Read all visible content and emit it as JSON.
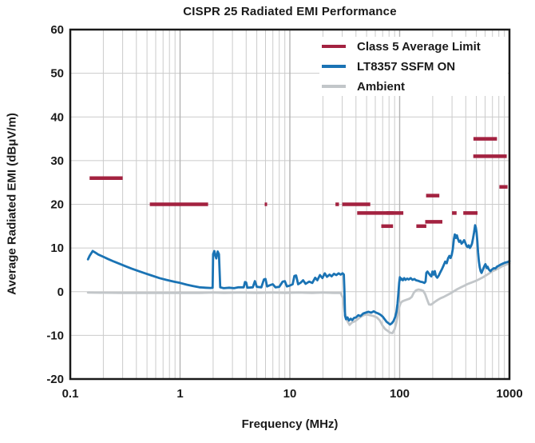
{
  "chart_data": {
    "type": "line",
    "title": "CISPR 25 Radiated EMI Performance",
    "xlabel": "Frequency (MHz)",
    "ylabel": "Average Radiated EMI (dBμV/m)",
    "x_scale": "log",
    "xlim": [
      0.1,
      1000
    ],
    "ylim": [
      -20,
      60
    ],
    "x_ticks": [
      0.1,
      1,
      10,
      100,
      1000
    ],
    "x_tick_labels": [
      "0.1",
      "1",
      "10",
      "100",
      "1000"
    ],
    "y_ticks": [
      60,
      50,
      40,
      30,
      20,
      10,
      0,
      -10,
      -20
    ],
    "grid": true,
    "legend_position": "top-right",
    "colors": {
      "grid": "#cbcbcb",
      "grid_major": "#b3b3b3",
      "frame": "#1a1a1a",
      "text": "#1a1a1a"
    },
    "series": [
      {
        "name": "Class 5 Average Limit",
        "type": "segments",
        "color": "#A32240",
        "units": "MHz, dBμV/m",
        "segments": [
          [
            0.15,
            0.3,
            26
          ],
          [
            0.53,
            1.8,
            20
          ],
          [
            5.9,
            6.2,
            20
          ],
          [
            26,
            28,
            20
          ],
          [
            30,
            54,
            20
          ],
          [
            41,
            88,
            18
          ],
          [
            76,
            108,
            18
          ],
          [
            68,
            87,
            15
          ],
          [
            142,
            175,
            15
          ],
          [
            171,
            245,
            16
          ],
          [
            174,
            230,
            22
          ],
          [
            300,
            330,
            18
          ],
          [
            380,
            512,
            18
          ],
          [
            470,
            770,
            35
          ],
          [
            468,
            944,
            31
          ],
          [
            810,
            960,
            24
          ]
        ]
      },
      {
        "name": "LT8357 SSFM ON",
        "type": "line",
        "color": "#1A73B4",
        "points": [
          [
            0.145,
            7.4
          ],
          [
            0.15,
            8.2
          ],
          [
            0.16,
            9.3
          ],
          [
            0.17,
            8.9
          ],
          [
            0.18,
            8.5
          ],
          [
            0.2,
            8.0
          ],
          [
            0.22,
            7.5
          ],
          [
            0.25,
            6.9
          ],
          [
            0.28,
            6.4
          ],
          [
            0.32,
            5.8
          ],
          [
            0.36,
            5.3
          ],
          [
            0.42,
            4.7
          ],
          [
            0.48,
            4.2
          ],
          [
            0.55,
            3.7
          ],
          [
            0.65,
            3.1
          ],
          [
            0.75,
            2.7
          ],
          [
            0.88,
            2.3
          ],
          [
            1.0,
            2.0
          ],
          [
            1.15,
            1.6
          ],
          [
            1.3,
            1.3
          ],
          [
            1.5,
            1.0
          ],
          [
            1.7,
            0.9
          ],
          [
            1.9,
            0.85
          ],
          [
            1.98,
            0.9
          ],
          [
            2.0,
            8.6
          ],
          [
            2.05,
            9.3
          ],
          [
            2.1,
            8.2
          ],
          [
            2.14,
            7.6
          ],
          [
            2.2,
            9.2
          ],
          [
            2.26,
            8.6
          ],
          [
            2.32,
            1.0
          ],
          [
            2.5,
            0.8
          ],
          [
            2.8,
            0.9
          ],
          [
            3.1,
            0.8
          ],
          [
            3.4,
            1.0
          ],
          [
            3.8,
            1.0
          ],
          [
            3.9,
            2.2
          ],
          [
            4.0,
            2.1
          ],
          [
            4.1,
            0.9
          ],
          [
            4.6,
            1.0
          ],
          [
            4.8,
            2.4
          ],
          [
            5.0,
            1.1
          ],
          [
            5.5,
            1.0
          ],
          [
            5.8,
            2.8
          ],
          [
            6.0,
            2.9
          ],
          [
            6.2,
            1.2
          ],
          [
            6.6,
            1.5
          ],
          [
            7.0,
            1.7
          ],
          [
            7.4,
            1.0
          ],
          [
            8.0,
            1.1
          ],
          [
            8.6,
            2.3
          ],
          [
            9.0,
            2.4
          ],
          [
            9.4,
            1.2
          ],
          [
            10.0,
            1.4
          ],
          [
            10.6,
            1.7
          ],
          [
            11.0,
            3.6
          ],
          [
            11.4,
            3.7
          ],
          [
            11.9,
            1.7
          ],
          [
            12.6,
            2.1
          ],
          [
            13.2,
            2.6
          ],
          [
            13.9,
            1.8
          ],
          [
            15.0,
            2.3
          ],
          [
            16.0,
            2.0
          ],
          [
            17.0,
            3.2
          ],
          [
            17.8,
            2.6
          ],
          [
            18.8,
            3.8
          ],
          [
            19.8,
            3.1
          ],
          [
            20.8,
            4.2
          ],
          [
            21.8,
            3.4
          ],
          [
            23.0,
            3.9
          ],
          [
            24.0,
            3.5
          ],
          [
            25.2,
            4.1
          ],
          [
            26.5,
            3.8
          ],
          [
            27.8,
            4.2
          ],
          [
            29.0,
            3.9
          ],
          [
            30.2,
            4.2
          ],
          [
            31.0,
            3.9
          ],
          [
            31.4,
            0.5
          ],
          [
            31.8,
            -5.5
          ],
          [
            32.5,
            -6.3
          ],
          [
            33.5,
            -5.9
          ],
          [
            34.5,
            -6.6
          ],
          [
            35.8,
            -6.2
          ],
          [
            37.0,
            -6.5
          ],
          [
            38.5,
            -6.0
          ],
          [
            40.0,
            -5.9
          ],
          [
            42.0,
            -5.4
          ],
          [
            44.0,
            -5.6
          ],
          [
            46.5,
            -5.0
          ],
          [
            49.0,
            -4.8
          ],
          [
            52.0,
            -4.6
          ],
          [
            55.0,
            -4.8
          ],
          [
            58.0,
            -4.5
          ],
          [
            61.0,
            -4.8
          ],
          [
            64.0,
            -5.0
          ],
          [
            67.0,
            -5.3
          ],
          [
            70.0,
            -5.7
          ],
          [
            73.0,
            -6.3
          ],
          [
            76.0,
            -6.9
          ],
          [
            79.0,
            -7.2
          ],
          [
            82.0,
            -7.5
          ],
          [
            85.0,
            -7.2
          ],
          [
            88.0,
            -6.7
          ],
          [
            91.0,
            -5.8
          ],
          [
            93.5,
            -4.6
          ],
          [
            95.5,
            -2.8
          ],
          [
            97.5,
            -0.2
          ],
          [
            99.0,
            2.0
          ],
          [
            100.5,
            3.3
          ],
          [
            102,
            2.7
          ],
          [
            104,
            3.0
          ],
          [
            107,
            2.6
          ],
          [
            110,
            3.1
          ],
          [
            113,
            2.7
          ],
          [
            117,
            3.0
          ],
          [
            121,
            2.8
          ],
          [
            126,
            3.1
          ],
          [
            131,
            2.7
          ],
          [
            136,
            2.9
          ],
          [
            141,
            2.6
          ],
          [
            147,
            2.5
          ],
          [
            154,
            2.3
          ],
          [
            161,
            2.2
          ],
          [
            168,
            2.0
          ],
          [
            172,
            2.3
          ],
          [
            175,
            4.3
          ],
          [
            179,
            4.6
          ],
          [
            184,
            4.2
          ],
          [
            189,
            3.8
          ],
          [
            194,
            3.5
          ],
          [
            199,
            4.6
          ],
          [
            204,
            3.9
          ],
          [
            209,
            4.7
          ],
          [
            214,
            3.6
          ],
          [
            220,
            3.2
          ],
          [
            227,
            3.7
          ],
          [
            234,
            4.4
          ],
          [
            242,
            5.1
          ],
          [
            251,
            6.0
          ],
          [
            260,
            6.9
          ],
          [
            268,
            6.5
          ],
          [
            276,
            7.6
          ],
          [
            284,
            8.2
          ],
          [
            291,
            7.7
          ],
          [
            298,
            8.4
          ],
          [
            305,
            9.8
          ],
          [
            312,
            12.0
          ],
          [
            318,
            13.1
          ],
          [
            325,
            12.3
          ],
          [
            332,
            12.9
          ],
          [
            340,
            12.0
          ],
          [
            348,
            11.4
          ],
          [
            357,
            11.7
          ],
          [
            366,
            11.0
          ],
          [
            376,
            11.3
          ],
          [
            386,
            11.8
          ],
          [
            396,
            11.2
          ],
          [
            406,
            10.5
          ],
          [
            416,
            10.2
          ],
          [
            426,
            10.6
          ],
          [
            436,
            10.0
          ],
          [
            446,
            10.4
          ],
          [
            456,
            11.0
          ],
          [
            466,
            12.2
          ],
          [
            476,
            13.6
          ],
          [
            487,
            15.2
          ],
          [
            494,
            14.7
          ],
          [
            502,
            13.6
          ],
          [
            510,
            11.5
          ],
          [
            518,
            9.0
          ],
          [
            527,
            7.0
          ],
          [
            536,
            5.6
          ],
          [
            546,
            4.7
          ],
          [
            557,
            4.3
          ],
          [
            568,
            4.8
          ],
          [
            580,
            5.4
          ],
          [
            592,
            5.9
          ],
          [
            604,
            6.3
          ],
          [
            612,
            5.9
          ],
          [
            622,
            5.4
          ],
          [
            633,
            5.7
          ],
          [
            645,
            5.2
          ],
          [
            658,
            4.9
          ],
          [
            672,
            4.7
          ],
          [
            688,
            5.0
          ],
          [
            705,
            5.2
          ],
          [
            724,
            5.4
          ],
          [
            745,
            5.3
          ],
          [
            768,
            5.7
          ],
          [
            793,
            5.9
          ],
          [
            820,
            6.1
          ],
          [
            850,
            6.3
          ],
          [
            885,
            6.5
          ],
          [
            925,
            6.7
          ],
          [
            965,
            6.8
          ],
          [
            1000,
            7.0
          ]
        ]
      },
      {
        "name": "Ambient",
        "type": "line",
        "color": "#C2C6C9",
        "points": [
          [
            0.145,
            -0.2
          ],
          [
            0.3,
            -0.3
          ],
          [
            0.6,
            -0.3
          ],
          [
            1.0,
            -0.3
          ],
          [
            1.5,
            -0.3
          ],
          [
            2.0,
            -0.2
          ],
          [
            2.5,
            -0.3
          ],
          [
            3.5,
            -0.2
          ],
          [
            5.0,
            -0.3
          ],
          [
            7.0,
            -0.2
          ],
          [
            9.0,
            -0.3
          ],
          [
            12,
            -0.2
          ],
          [
            16,
            -0.3
          ],
          [
            20,
            -0.2
          ],
          [
            25,
            -0.3
          ],
          [
            29,
            -0.3
          ],
          [
            30.5,
            -1.5
          ],
          [
            31.5,
            -4.5
          ],
          [
            33,
            -6.5
          ],
          [
            35,
            -7.6
          ],
          [
            37,
            -7.0
          ],
          [
            39,
            -6.8
          ],
          [
            41,
            -6.4
          ],
          [
            44,
            -5.8
          ],
          [
            47,
            -5.4
          ],
          [
            50,
            -5.2
          ],
          [
            54,
            -5.4
          ],
          [
            58,
            -5.6
          ],
          [
            62,
            -5.9
          ],
          [
            66,
            -6.6
          ],
          [
            70,
            -7.8
          ],
          [
            74,
            -8.6
          ],
          [
            78,
            -9.0
          ],
          [
            82,
            -9.4
          ],
          [
            86,
            -9.5
          ],
          [
            90,
            -8.6
          ],
          [
            93,
            -7.2
          ],
          [
            96,
            -5.4
          ],
          [
            99,
            -3.6
          ],
          [
            102,
            -2.6
          ],
          [
            106,
            -2.2
          ],
          [
            111,
            -2.0
          ],
          [
            117,
            -1.8
          ],
          [
            123,
            -1.6
          ],
          [
            129,
            -1.2
          ],
          [
            135,
            -0.2
          ],
          [
            141,
            0.3
          ],
          [
            148,
            0.5
          ],
          [
            156,
            0.4
          ],
          [
            164,
            0.2
          ],
          [
            171,
            -0.6
          ],
          [
            178,
            -1.8
          ],
          [
            185,
            -2.9
          ],
          [
            192,
            -3.0
          ],
          [
            200,
            -2.7
          ],
          [
            210,
            -2.3
          ],
          [
            222,
            -1.9
          ],
          [
            236,
            -1.5
          ],
          [
            252,
            -1.2
          ],
          [
            270,
            -0.8
          ],
          [
            290,
            -0.4
          ],
          [
            312,
            0.1
          ],
          [
            336,
            0.6
          ],
          [
            362,
            1.0
          ],
          [
            390,
            1.4
          ],
          [
            420,
            1.8
          ],
          [
            452,
            2.1
          ],
          [
            487,
            2.4
          ],
          [
            525,
            2.8
          ],
          [
            565,
            3.2
          ],
          [
            610,
            3.7
          ],
          [
            655,
            4.2
          ],
          [
            700,
            4.7
          ],
          [
            750,
            5.0
          ],
          [
            800,
            5.4
          ],
          [
            855,
            5.8
          ],
          [
            915,
            6.1
          ],
          [
            1000,
            6.5
          ]
        ]
      }
    ]
  }
}
